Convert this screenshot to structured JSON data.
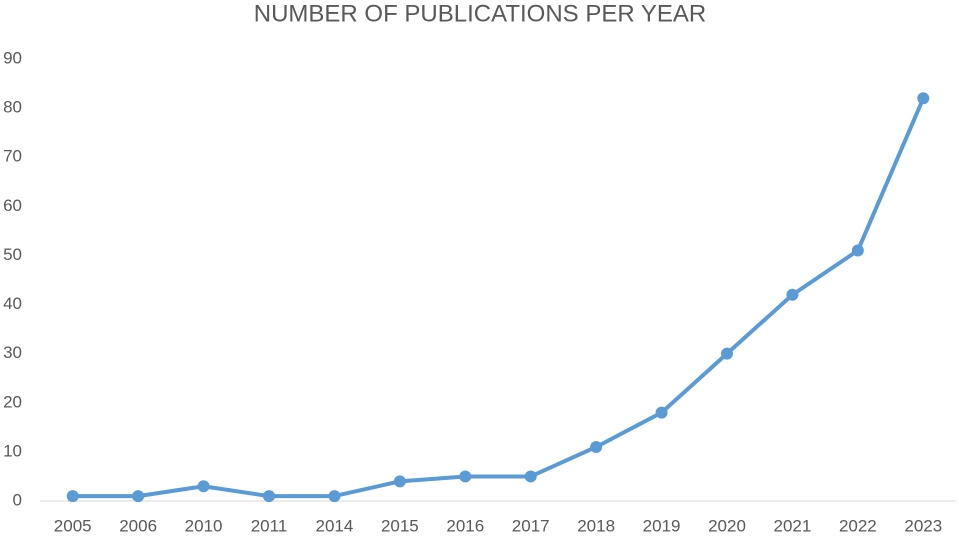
{
  "chart_data": {
    "type": "line",
    "title": "NUMBER OF PUBLICATIONS PER YEAR",
    "categories": [
      "2005",
      "2006",
      "2010",
      "2011",
      "2014",
      "2015",
      "2016",
      "2017",
      "2018",
      "2019",
      "2020",
      "2021",
      "2022",
      "2023"
    ],
    "values": [
      1,
      1,
      3,
      1,
      1,
      4,
      5,
      5,
      11,
      18,
      30,
      42,
      51,
      82
    ],
    "color": "#5b9bd5",
    "ylim": [
      0,
      90
    ],
    "yticks": [
      0,
      10,
      20,
      30,
      40,
      50,
      60,
      70,
      80,
      90
    ],
    "grid": false
  }
}
